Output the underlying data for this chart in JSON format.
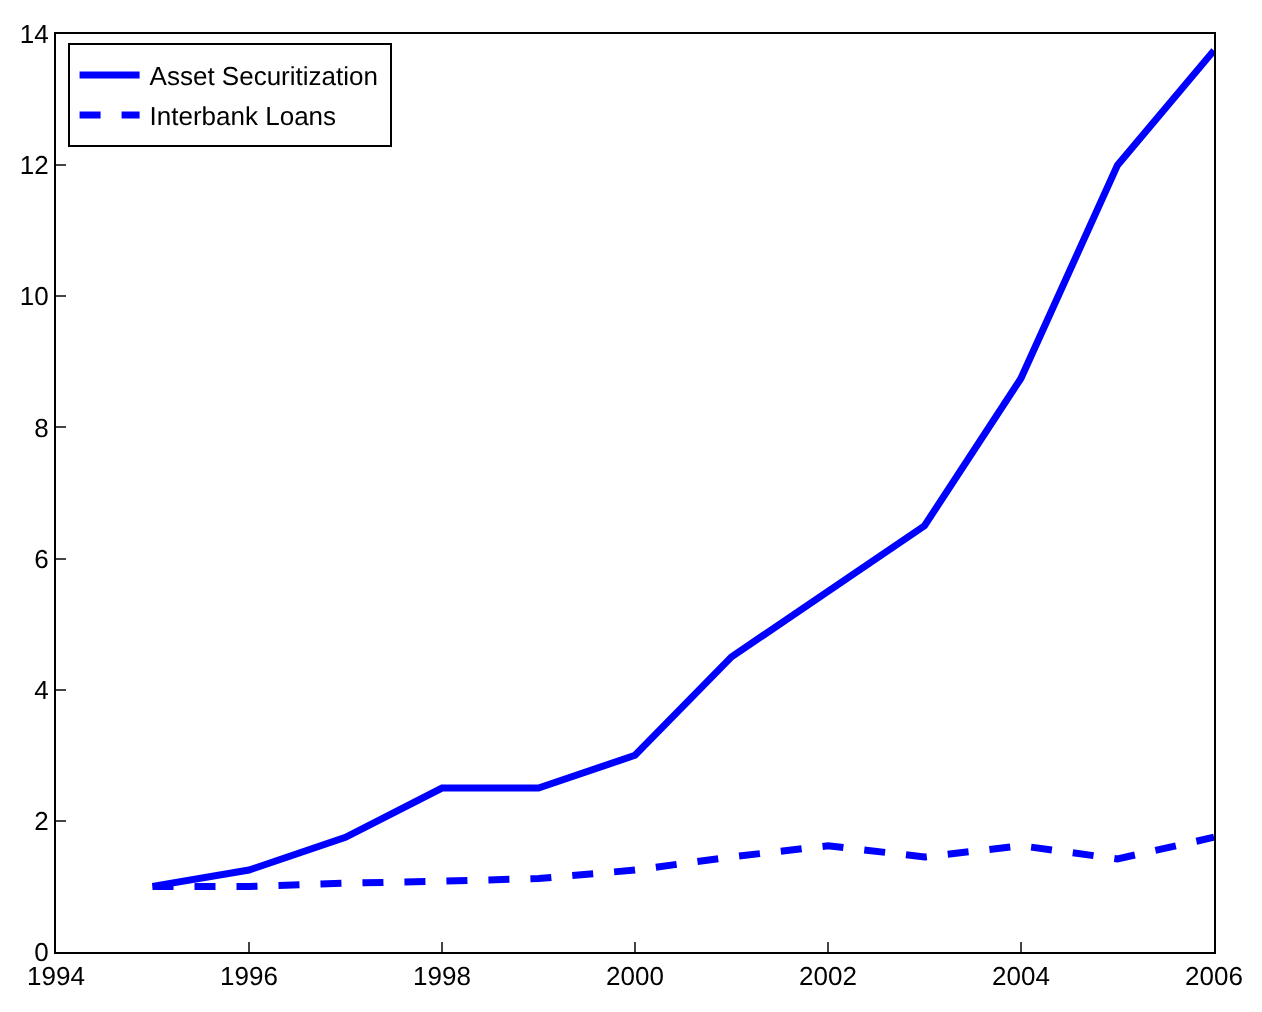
{
  "chart_data": {
    "type": "line",
    "x": [
      1995,
      1996,
      1997,
      1998,
      1999,
      2000,
      2001,
      2002,
      2003,
      2004,
      2005,
      2006
    ],
    "series": [
      {
        "name": "Asset Securitization",
        "color": "#0000ff",
        "line_style": "solid",
        "values": [
          1.0,
          1.25,
          1.75,
          2.5,
          2.5,
          3.0,
          4.5,
          5.5,
          6.5,
          8.75,
          12.0,
          13.75
        ]
      },
      {
        "name": "Interbank Loans",
        "color": "#0000ff",
        "line_style": "dashed",
        "values": [
          1.0,
          1.0,
          1.05,
          1.08,
          1.12,
          1.25,
          1.45,
          1.62,
          1.45,
          1.62,
          1.42,
          1.75
        ]
      }
    ],
    "xlim": [
      1994,
      2006
    ],
    "xticks": [
      1994,
      1996,
      1998,
      2000,
      2002,
      2004,
      2006
    ],
    "ylim": [
      0,
      14
    ],
    "yticks": [
      0,
      2,
      4,
      6,
      8,
      10,
      12,
      14
    ],
    "grid": false,
    "legend": "top left",
    "marker": "none"
  }
}
